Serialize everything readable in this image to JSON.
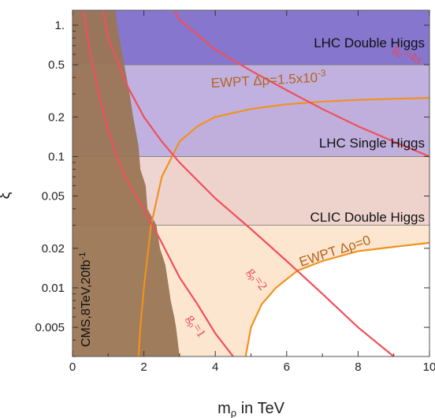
{
  "chart_data": {
    "type": "exclusion-plot",
    "xlabel": "m",
    "xlabel_sub": "ρ",
    "xlabel_rest": " in TeV",
    "ylabel": "ξ",
    "xlim": [
      0,
      10
    ],
    "ylim": [
      0.003,
      1.3
    ],
    "yscale": "log",
    "x_ticks": [
      0,
      2,
      4,
      6,
      8,
      10
    ],
    "x_tick_labels": [
      "0",
      "2",
      "4",
      "6",
      "8",
      "10"
    ],
    "y_ticks": [
      1,
      0.5,
      0.2,
      0.1,
      0.05,
      0.02,
      0.01,
      0.005
    ],
    "y_tick_labels": [
      "1.",
      "0.5",
      "0.2",
      "0.1",
      "0.05",
      "0.02",
      "0.01",
      "0.005"
    ],
    "colors": {
      "lhc_double": "#7f6fcb",
      "lhc_single": "#b9a9de",
      "clic_double": "#ecd0cc",
      "ewpt_allowed_fill": "#fde6cf",
      "ewpt_line": "#f0921e",
      "grho_line": "#f0505a",
      "cms": "#9a7654"
    },
    "bands": [
      {
        "label": "LHC Double Higgs",
        "ymin": 0.5,
        "ymax": 1.3
      },
      {
        "label": "LHC Single Higgs",
        "ymin": 0.1,
        "ymax": 0.5
      },
      {
        "label": "CLIC Double Higgs",
        "ymin": 0.03,
        "ymax": 0.1
      }
    ],
    "ewpt_curves": [
      {
        "label": "EWPT Δρ=1.5x10",
        "label_exp": "-3",
        "x": [
          1.85,
          1.9,
          2.0,
          2.2,
          2.5,
          3.0,
          3.5,
          4.0,
          5.0,
          6.0,
          7.0,
          8.0,
          9.0,
          10.0
        ],
        "y": [
          0.003,
          0.005,
          0.01,
          0.03,
          0.07,
          0.13,
          0.17,
          0.2,
          0.23,
          0.25,
          0.262,
          0.27,
          0.275,
          0.28
        ]
      },
      {
        "label": "EWPT Δρ=0",
        "x": [
          4.85,
          5.0,
          5.3,
          5.7,
          6.3,
          7.0,
          8.0,
          9.0,
          10.0
        ],
        "y": [
          0.003,
          0.005,
          0.0075,
          0.01,
          0.0135,
          0.016,
          0.019,
          0.0205,
          0.022
        ]
      }
    ],
    "grho_curves": [
      {
        "label": "g",
        "label_sub": "ρ",
        "label_rest": "=1",
        "x": [
          0.3,
          0.5,
          0.8,
          1.0,
          1.3,
          1.6,
          2.0,
          2.5,
          3.0,
          3.5,
          4.0,
          4.5
        ],
        "y": [
          1.3,
          0.6,
          0.25,
          0.16,
          0.09,
          0.06,
          0.04,
          0.022,
          0.012,
          0.0075,
          0.0045,
          0.003
        ]
      },
      {
        "label": "g",
        "label_sub": "ρ",
        "label_rest": "=2",
        "x": [
          0.85,
          1.0,
          1.5,
          2.0,
          2.5,
          3.0,
          4.0,
          5.0,
          6.0,
          7.0,
          8.0,
          9.0
        ],
        "y": [
          1.3,
          0.8,
          0.36,
          0.2,
          0.13,
          0.09,
          0.048,
          0.028,
          0.016,
          0.009,
          0.005,
          0.003
        ]
      },
      {
        "label": "g",
        "label_sub": "ρ",
        "label_rest": "=4π",
        "x": [
          2.85,
          3.0,
          4.0,
          5.0,
          6.0,
          7.0,
          8.0,
          9.0,
          10.0
        ],
        "y": [
          1.3,
          1.1,
          0.65,
          0.45,
          0.32,
          0.23,
          0.17,
          0.13,
          0.1
        ]
      }
    ],
    "cms_exclusion": {
      "label": "CMS,8TeV,20fb",
      "label_exp": "-1",
      "boundary_x": [
        1.2,
        1.25,
        1.35,
        1.45,
        1.6,
        1.7,
        1.85,
        1.9,
        2.05,
        2.1,
        2.35,
        2.45,
        2.6,
        2.7,
        2.75,
        2.85,
        2.9,
        3.0
      ],
      "boundary_y": [
        1.3,
        1.0,
        0.7,
        0.5,
        0.3,
        0.2,
        0.12,
        0.08,
        0.06,
        0.04,
        0.03,
        0.02,
        0.015,
        0.01,
        0.008,
        0.006,
        0.005,
        0.003
      ]
    }
  }
}
